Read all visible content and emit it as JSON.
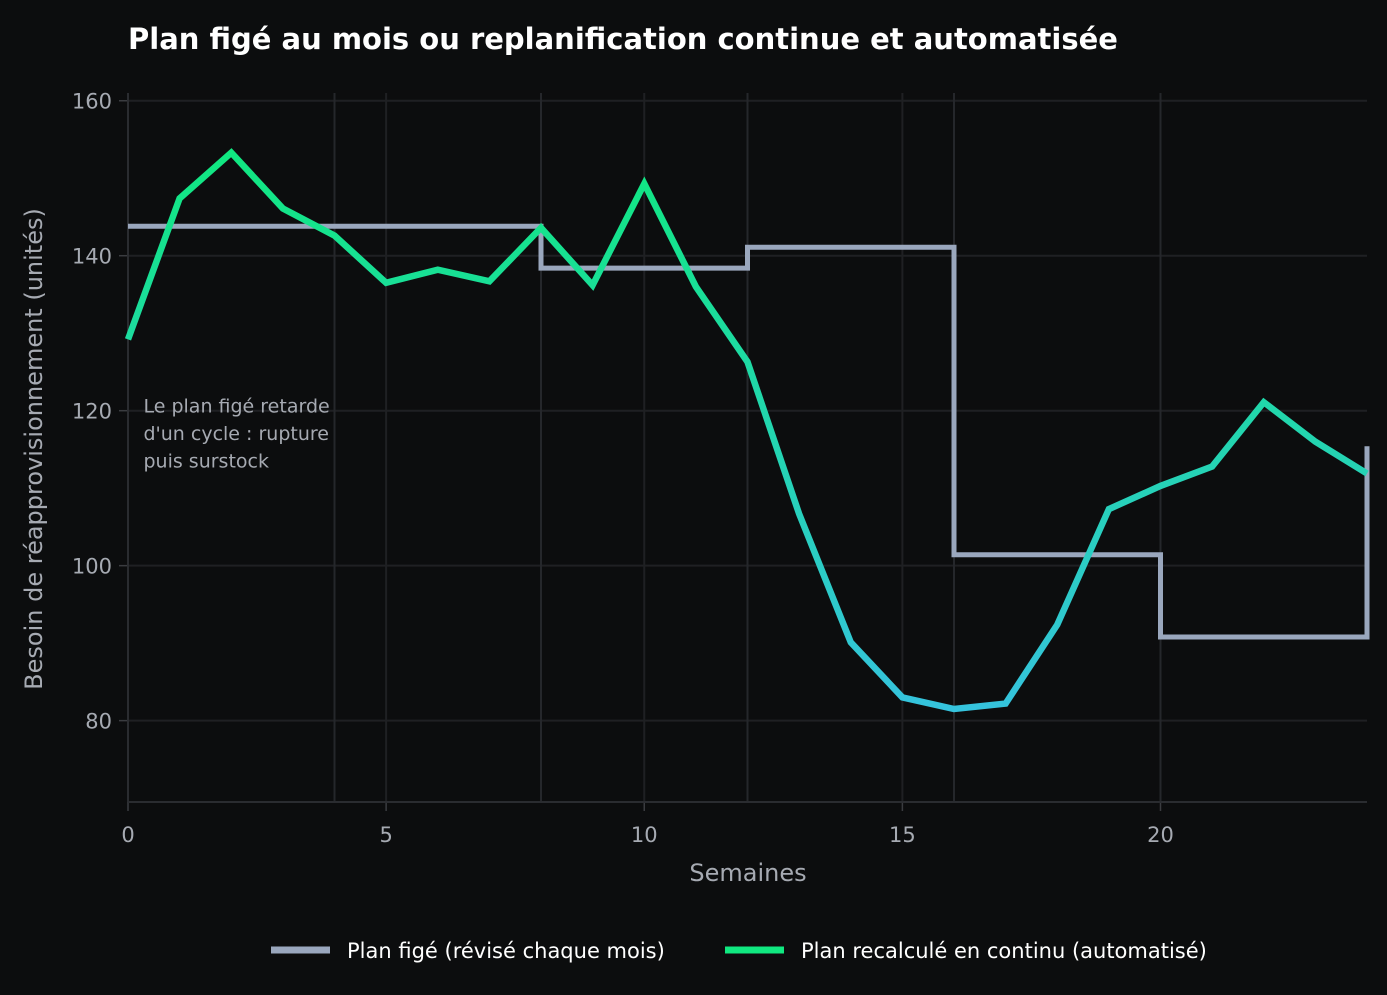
{
  "chart_data": {
    "type": "line",
    "title": "Plan figé au mois ou replanification continue et automatisée",
    "xlabel": "Semaines",
    "ylabel": "Besoin de réapprovisionnement (unités)",
    "xlim": [
      0,
      24
    ],
    "ylim": [
      69.5,
      161
    ],
    "xticks": [
      0,
      5,
      10,
      15,
      20
    ],
    "yticks": [
      80,
      100,
      120,
      140,
      160
    ],
    "vertical_markers": [
      4,
      8,
      12,
      16,
      20
    ],
    "grid": true,
    "legend_position": "bottom-center",
    "annotation": {
      "lines": [
        "Le plan figé retarde",
        "d'un cycle : rupture",
        "puis surstock"
      ],
      "x": 0.3,
      "y": 120
    },
    "series": [
      {
        "name": "Plan figé (révisé chaque mois)",
        "style": "step",
        "color": "#9aa7bd",
        "x": [
          0,
          8,
          8,
          12,
          12,
          16,
          16,
          20,
          20,
          24,
          24
        ],
        "y": [
          143.8,
          143.8,
          138.4,
          138.4,
          141.1,
          141.1,
          101.4,
          101.4,
          90.8,
          90.8,
          115.4
        ]
      },
      {
        "name": "Plan recalculé en continu (automatisé)",
        "style": "line",
        "color_top": "#10e880",
        "color_bottom": "#35c3dd",
        "x": [
          0,
          1,
          2,
          3,
          4,
          5,
          6,
          7,
          8,
          9,
          10,
          11,
          12,
          13,
          14,
          15,
          16,
          17,
          18,
          19,
          20,
          21,
          22,
          23,
          24
        ],
        "y": [
          129.2,
          147.4,
          153.3,
          146.1,
          142.6,
          136.5,
          138.2,
          136.7,
          143.6,
          136.2,
          149.3,
          136.0,
          126.3,
          106.7,
          90.1,
          83.0,
          81.5,
          82.2,
          92.4,
          107.3,
          110.3,
          112.8,
          121.1,
          116.0,
          111.9
        ]
      }
    ]
  }
}
